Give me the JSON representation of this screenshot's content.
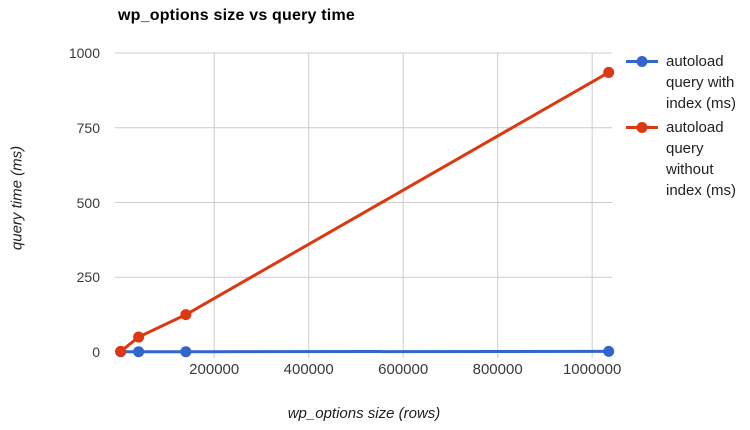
{
  "title": "wp_options size vs query time",
  "colors": {
    "series_with_index": "#3366cc",
    "series_without_index": "#dc3912",
    "gridline": "#cccccc",
    "tick_text": "#3a3a3a",
    "title_text": "#000000"
  },
  "chart_data": {
    "type": "line",
    "title": "wp_options size vs query time",
    "xlabel": "wp_options size (rows)",
    "ylabel": "query time (ms)",
    "x": [
      2000,
      40000,
      140000,
      1035000
    ],
    "series": [
      {
        "name": "autoload query with index (ms)",
        "color": "#3366cc",
        "values": [
          1,
          1,
          1,
          2
        ]
      },
      {
        "name": "autoload query without index (ms)",
        "color": "#dc3912",
        "values": [
          2,
          50,
          125,
          935
        ]
      }
    ],
    "x_ticks": [
      {
        "value": 200000,
        "label": "200000"
      },
      {
        "value": 400000,
        "label": "400000"
      },
      {
        "value": 600000,
        "label": "600000"
      },
      {
        "value": 800000,
        "label": "800000"
      },
      {
        "value": 1000000,
        "label": "1000000"
      }
    ],
    "y_ticks": [
      {
        "value": 1000,
        "label": "1000"
      },
      {
        "value": 750,
        "label": "750"
      },
      {
        "value": 500,
        "label": "500"
      },
      {
        "value": 250,
        "label": "250"
      },
      {
        "value": 0,
        "label": "0"
      }
    ],
    "xlim": [
      -10000,
      1042000
    ],
    "ylim": [
      0,
      1000
    ],
    "grid": true,
    "legend_position": "right",
    "marker": "circle",
    "point_radius": 5.5,
    "line_width": 3
  }
}
